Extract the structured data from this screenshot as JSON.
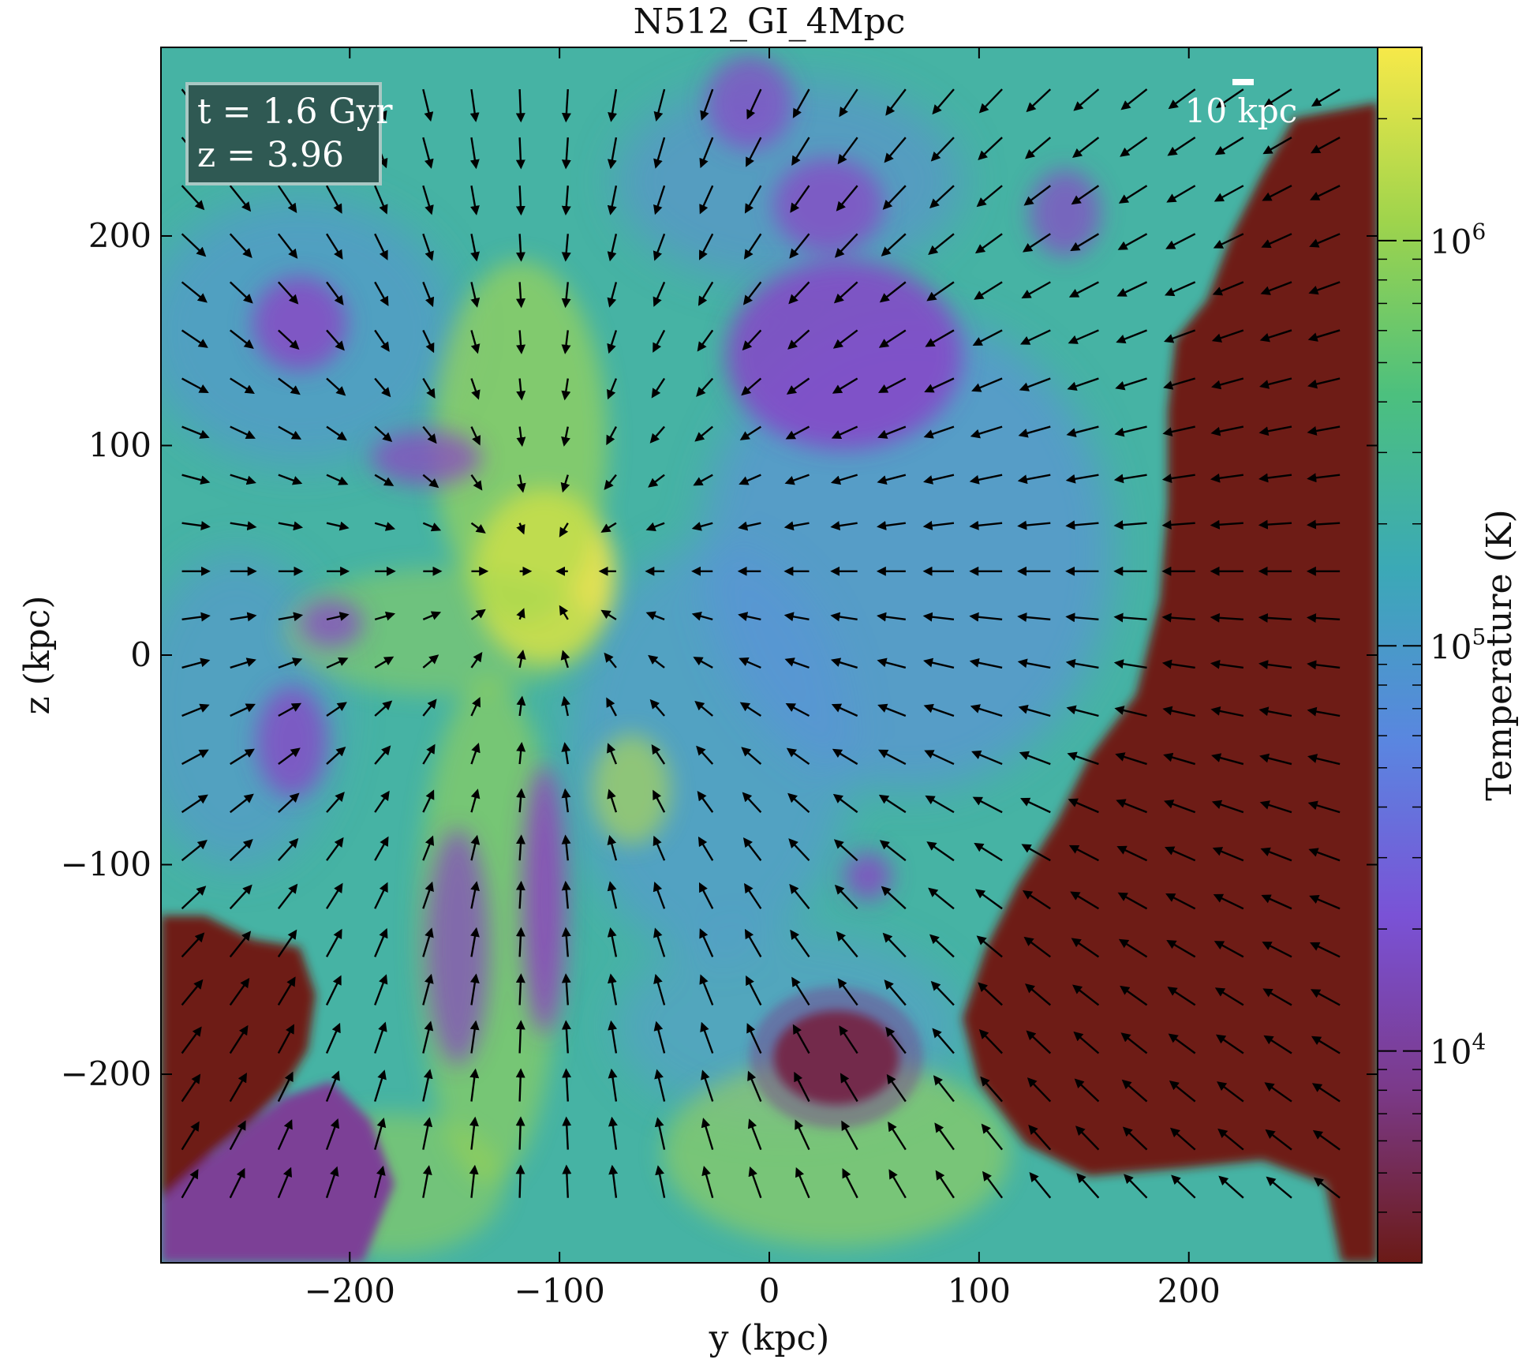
{
  "chart_data": {
    "type": "heatmap",
    "title": "N512_GI_4Mpc",
    "xlabel": "y  (kpc)",
    "ylabel": "z  (kpc)",
    "xlim": [
      -290,
      290
    ],
    "ylim": [
      -290,
      290
    ],
    "xticks": [
      -200,
      -100,
      0,
      100,
      200
    ],
    "yticks": [
      -200,
      -100,
      0,
      100,
      200
    ],
    "xtick_labels": [
      "−200",
      "−100",
      "0",
      "100",
      "200"
    ],
    "ytick_labels": [
      "−200",
      "−100",
      "0",
      "100",
      "200"
    ],
    "colorbar": {
      "label": "Temperature  (K)",
      "scale": "log",
      "range": [
        3000,
        3000000
      ],
      "ticks": [
        {
          "value": 10000,
          "base": "10",
          "exp": "4"
        },
        {
          "value": 100000,
          "base": "10",
          "exp": "5"
        },
        {
          "value": 1000000,
          "base": "10",
          "exp": "6"
        }
      ],
      "colors": [
        "#6b1a16",
        "#7b3a8a",
        "#7a52d6",
        "#5a86e0",
        "#3ba9b6",
        "#4cc07e",
        "#9fd44c",
        "#f7e949"
      ]
    },
    "info_box": {
      "time": "t = 1.6 Gyr",
      "redshift": "z = 3.96",
      "bg": "#2f5953"
    },
    "scale_bar": {
      "label": "10 kpc",
      "length_kpc": 10
    },
    "quiver": {
      "description": "velocity field arrows, converging toward the central halo",
      "sink": [
        -110,
        40
      ],
      "color": "#000000"
    },
    "cold_regions": [
      {
        "name": "right cold gas",
        "center": [
          245,
          40
        ]
      },
      {
        "name": "lower-left cold gas",
        "center": [
          -250,
          -225
        ]
      },
      {
        "name": "upper-middle cold gas",
        "center": [
          30,
          120
        ]
      }
    ]
  }
}
